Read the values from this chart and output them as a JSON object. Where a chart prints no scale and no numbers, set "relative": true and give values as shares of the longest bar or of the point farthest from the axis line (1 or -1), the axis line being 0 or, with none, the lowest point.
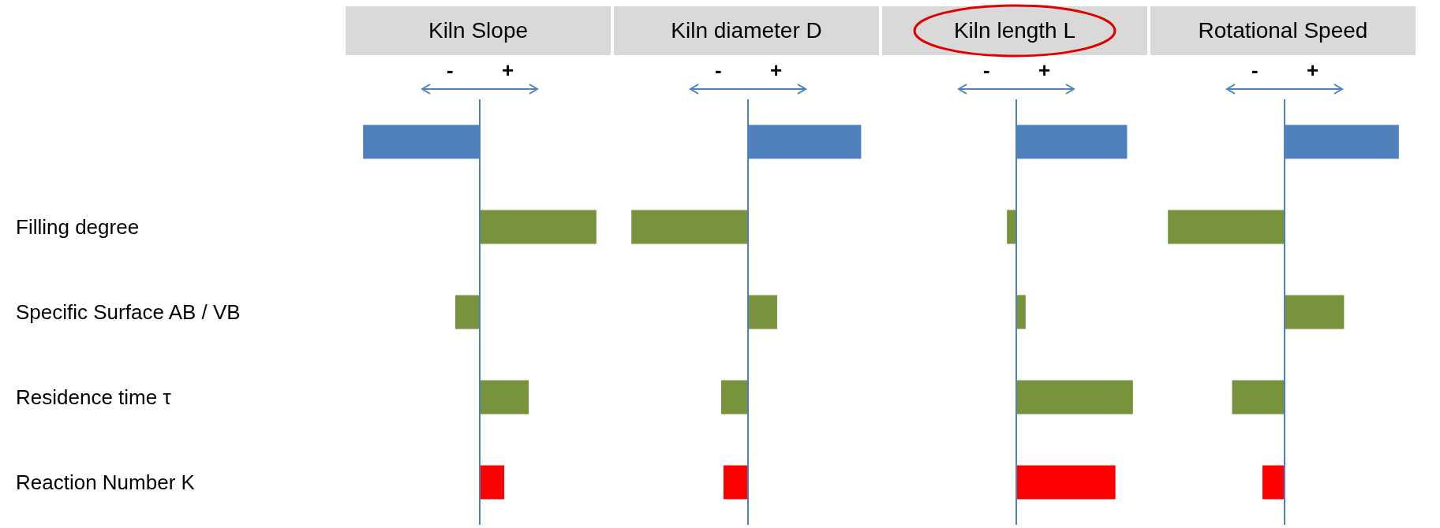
{
  "chart_data": [
    {
      "type": "bar",
      "orientation": "horizontal",
      "relative": true,
      "tick_labels": "y",
      "title": "Kiln Slope",
      "ref_lines": [
        {
          "axis": "x",
          "value": 0,
          "color": "#4f81bd"
        }
      ],
      "annotations": [
        "-",
        "+"
      ],
      "categories": [
        null,
        "Filling degree",
        "Specific Surface AB / VB",
        "Residence time τ",
        "Reaction Number K"
      ],
      "values": [
        -1,
        1,
        -0.21,
        0.42,
        0.21
      ],
      "colors": [
        "#4f81bd",
        "#77933c",
        "#77933c",
        "#77933c",
        "#ff0000"
      ]
    },
    {
      "type": "bar",
      "orientation": "horizontal",
      "relative": true,
      "tick_labels": false,
      "title": "Kiln diameter D",
      "ref_lines": [
        {
          "axis": "x",
          "value": 0,
          "color": "#4f81bd"
        }
      ],
      "annotations": [
        "-",
        "+"
      ],
      "categories": [
        null,
        null,
        null,
        null,
        null
      ],
      "values": [
        0.97,
        -1,
        0.25,
        -0.23,
        -0.21
      ],
      "colors": [
        "#4f81bd",
        "#77933c",
        "#77933c",
        "#77933c",
        "#ff0000"
      ]
    },
    {
      "type": "bar",
      "orientation": "horizontal",
      "relative": true,
      "tick_labels": false,
      "title": "Kiln length L",
      "ref_lines": [
        {
          "axis": "x",
          "value": 0,
          "color": "#4f81bd"
        }
      ],
      "annotations": [
        "-",
        "+"
      ],
      "categories": [
        null,
        null,
        null,
        null,
        null
      ],
      "values": [
        0.95,
        -0.08,
        0.08,
        1,
        0.85
      ],
      "colors": [
        "#4f81bd",
        "#77933c",
        "#77933c",
        "#77933c",
        "#ff0000"
      ]
    },
    {
      "type": "bar",
      "orientation": "horizontal",
      "relative": true,
      "tick_labels": false,
      "title": "Rotational Speed",
      "ref_lines": [
        {
          "axis": "x",
          "value": 0,
          "color": "#4f81bd"
        }
      ],
      "annotations": [
        "-",
        "+"
      ],
      "categories": [
        null,
        null,
        null,
        null,
        null
      ],
      "values": [
        0.98,
        -1,
        0.51,
        -0.45,
        -0.19
      ],
      "colors": [
        "#4f81bd",
        "#77933c",
        "#77933c",
        "#77933c",
        "#ff0000"
      ]
    }
  ]
}
